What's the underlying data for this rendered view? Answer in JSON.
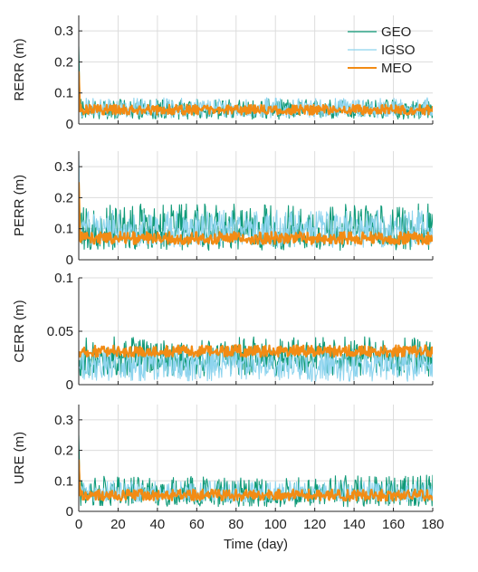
{
  "colors": {
    "GEO": "#0f9a78",
    "IGSO": "#8ed4ee",
    "MEO": "#f28b14",
    "axis": "#262626",
    "grid": "#dcdcdc"
  },
  "chart_data": [
    {
      "type": "line",
      "ylabel": "RERR (m)",
      "xlim": [
        0,
        180
      ],
      "ylim": [
        0,
        0.35
      ],
      "yticks": [
        0,
        0.1,
        0.2,
        0.3
      ],
      "ytick_labels": [
        "0",
        "0.1",
        "0.2",
        "0.3"
      ],
      "grid": true,
      "legend": {
        "placement": "top-right",
        "entries": [
          "GEO",
          "IGSO",
          "MEO"
        ]
      },
      "series": [
        {
          "name": "GEO",
          "x_start": 0,
          "x_end": 180,
          "spike": 0.25,
          "mean": 0.043,
          "low": 0.015,
          "high": 0.08
        },
        {
          "name": "IGSO",
          "x_start": 0,
          "x_end": 180,
          "spike": 0.12,
          "mean": 0.047,
          "low": 0.02,
          "high": 0.085
        },
        {
          "name": "MEO",
          "x_start": 0,
          "x_end": 180,
          "spike": 0.17,
          "mean": 0.045,
          "low": 0.03,
          "high": 0.062
        }
      ]
    },
    {
      "type": "line",
      "ylabel": "PERR (m)",
      "xlim": [
        0,
        180
      ],
      "ylim": [
        0,
        0.35
      ],
      "yticks": [
        0,
        0.1,
        0.2,
        0.3
      ],
      "ytick_labels": [
        "0",
        "0.1",
        "0.2",
        "0.3"
      ],
      "grid": true,
      "series": [
        {
          "name": "GEO",
          "x_start": 0,
          "x_end": 180,
          "spike": 0.3,
          "mean": 0.09,
          "low": 0.03,
          "high": 0.18
        },
        {
          "name": "IGSO",
          "x_start": 0,
          "x_end": 180,
          "spike": 0.34,
          "mean": 0.1,
          "low": 0.04,
          "high": 0.16
        },
        {
          "name": "MEO",
          "x_start": 0,
          "x_end": 180,
          "spike": 0.25,
          "mean": 0.068,
          "low": 0.05,
          "high": 0.09
        }
      ]
    },
    {
      "type": "line",
      "ylabel": "CERR (m)",
      "xlim": [
        0,
        180
      ],
      "ylim": [
        0,
        0.1
      ],
      "yticks": [
        0,
        0.05,
        0.1
      ],
      "ytick_labels": [
        "0",
        "0.05",
        "0.1"
      ],
      "grid": true,
      "series": [
        {
          "name": "GEO",
          "x_start": 0,
          "x_end": 180,
          "spike": 0.02,
          "mean": 0.025,
          "low": 0.008,
          "high": 0.045
        },
        {
          "name": "IGSO",
          "x_start": 0,
          "x_end": 180,
          "spike": 0.015,
          "mean": 0.018,
          "low": 0.003,
          "high": 0.035
        },
        {
          "name": "MEO",
          "x_start": 0,
          "x_end": 180,
          "spike": 0.03,
          "mean": 0.031,
          "low": 0.026,
          "high": 0.037
        }
      ]
    },
    {
      "type": "line",
      "ylabel": "URE (m)",
      "xlabel": "Time (day)",
      "xlim": [
        0,
        180
      ],
      "xticks": [
        0,
        20,
        40,
        60,
        80,
        100,
        120,
        140,
        160,
        180
      ],
      "ylim": [
        0,
        0.35
      ],
      "yticks": [
        0,
        0.1,
        0.2,
        0.3
      ],
      "ytick_labels": [
        "0",
        "0.1",
        "0.2",
        "0.3"
      ],
      "grid": true,
      "series": [
        {
          "name": "GEO",
          "x_start": 0,
          "x_end": 180,
          "spike": 0.25,
          "mean": 0.055,
          "low": 0.015,
          "high": 0.12
        },
        {
          "name": "IGSO",
          "x_start": 0,
          "x_end": 180,
          "spike": 0.13,
          "mean": 0.06,
          "low": 0.03,
          "high": 0.1
        },
        {
          "name": "MEO",
          "x_start": 0,
          "x_end": 180,
          "spike": 0.17,
          "mean": 0.052,
          "low": 0.035,
          "high": 0.072
        }
      ]
    }
  ]
}
